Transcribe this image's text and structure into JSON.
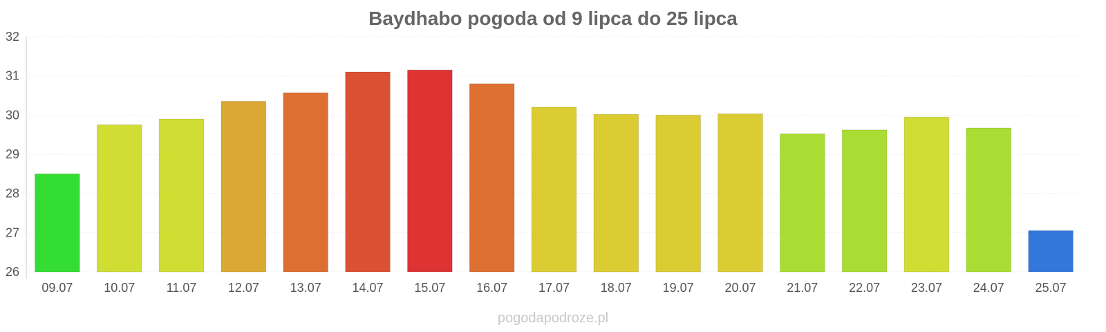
{
  "chart_data": {
    "type": "bar",
    "title": "Baydhabo pogoda od 9 lipca do 25 lipca",
    "xlabel": "",
    "ylabel": "",
    "ylim": [
      26,
      32
    ],
    "yticks": [
      "26",
      "27",
      "28",
      "29",
      "30",
      "31",
      "32"
    ],
    "grid": true,
    "categories": [
      "09.07",
      "10.07",
      "11.07",
      "12.07",
      "13.07",
      "14.07",
      "15.07",
      "16.07",
      "17.07",
      "18.07",
      "19.07",
      "20.07",
      "21.07",
      "22.07",
      "23.07",
      "24.07",
      "25.07"
    ],
    "values": [
      28.5,
      29.75,
      29.9,
      30.35,
      30.57,
      31.1,
      31.15,
      30.8,
      30.2,
      30.02,
      30.0,
      30.03,
      29.52,
      29.62,
      29.95,
      29.67,
      27.05
    ],
    "colors": [
      "#33dd33",
      "#d0dd33",
      "#d0dd33",
      "#dba833",
      "#dd6f33",
      "#dd5133",
      "#dd3333",
      "#dd6f33",
      "#dbcc33",
      "#dbcc33",
      "#dbcc33",
      "#dbcc33",
      "#aadd33",
      "#aadd33",
      "#d0dd33",
      "#aadd33",
      "#3377dd"
    ]
  },
  "watermark": "pogodapodroze.pl"
}
